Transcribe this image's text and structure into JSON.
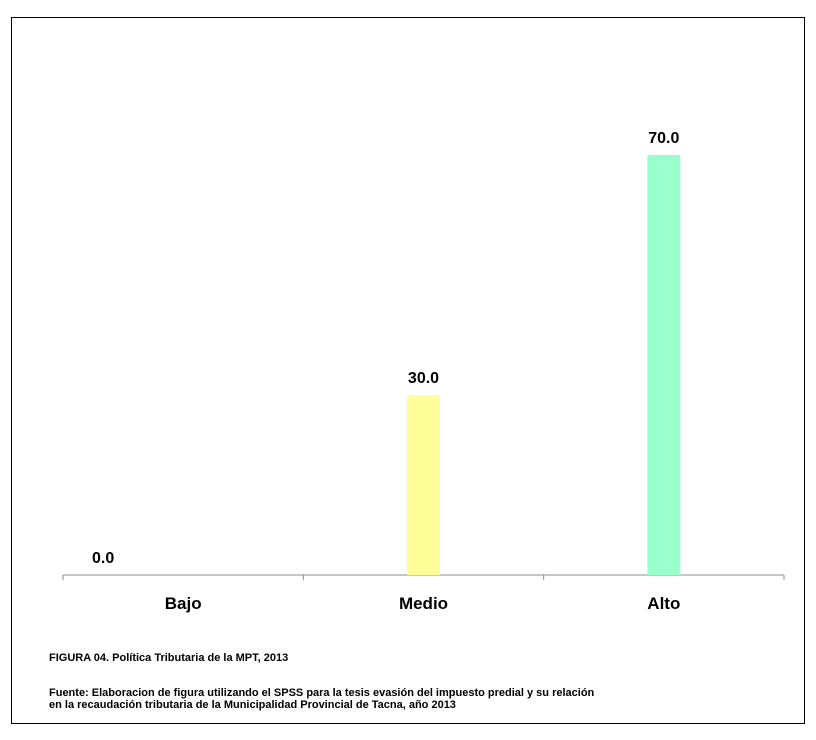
{
  "chart_data": {
    "type": "bar",
    "categories": [
      "Bajo",
      "Medio",
      "Alto"
    ],
    "values": [
      0.0,
      30.0,
      70.0
    ],
    "data_labels": [
      "0.0",
      "30.0",
      "70.0"
    ],
    "ylim": [
      0,
      75
    ],
    "colors": [
      "#c8c8c8",
      "#ffff99",
      "#99ffcc"
    ],
    "grid": false,
    "legend": "none"
  },
  "caption": {
    "figure": "FIGURA   04. Política Tributaria de la MPT, 2013",
    "source_line1": "Fuente: Elaboracion de figura  utilizando el SPSS para la tesis evasión del impuesto predial y su relación",
    "source_line2": "en la recaudación tributaria de la Municipalidad Provincial de Tacna, año 2013"
  }
}
